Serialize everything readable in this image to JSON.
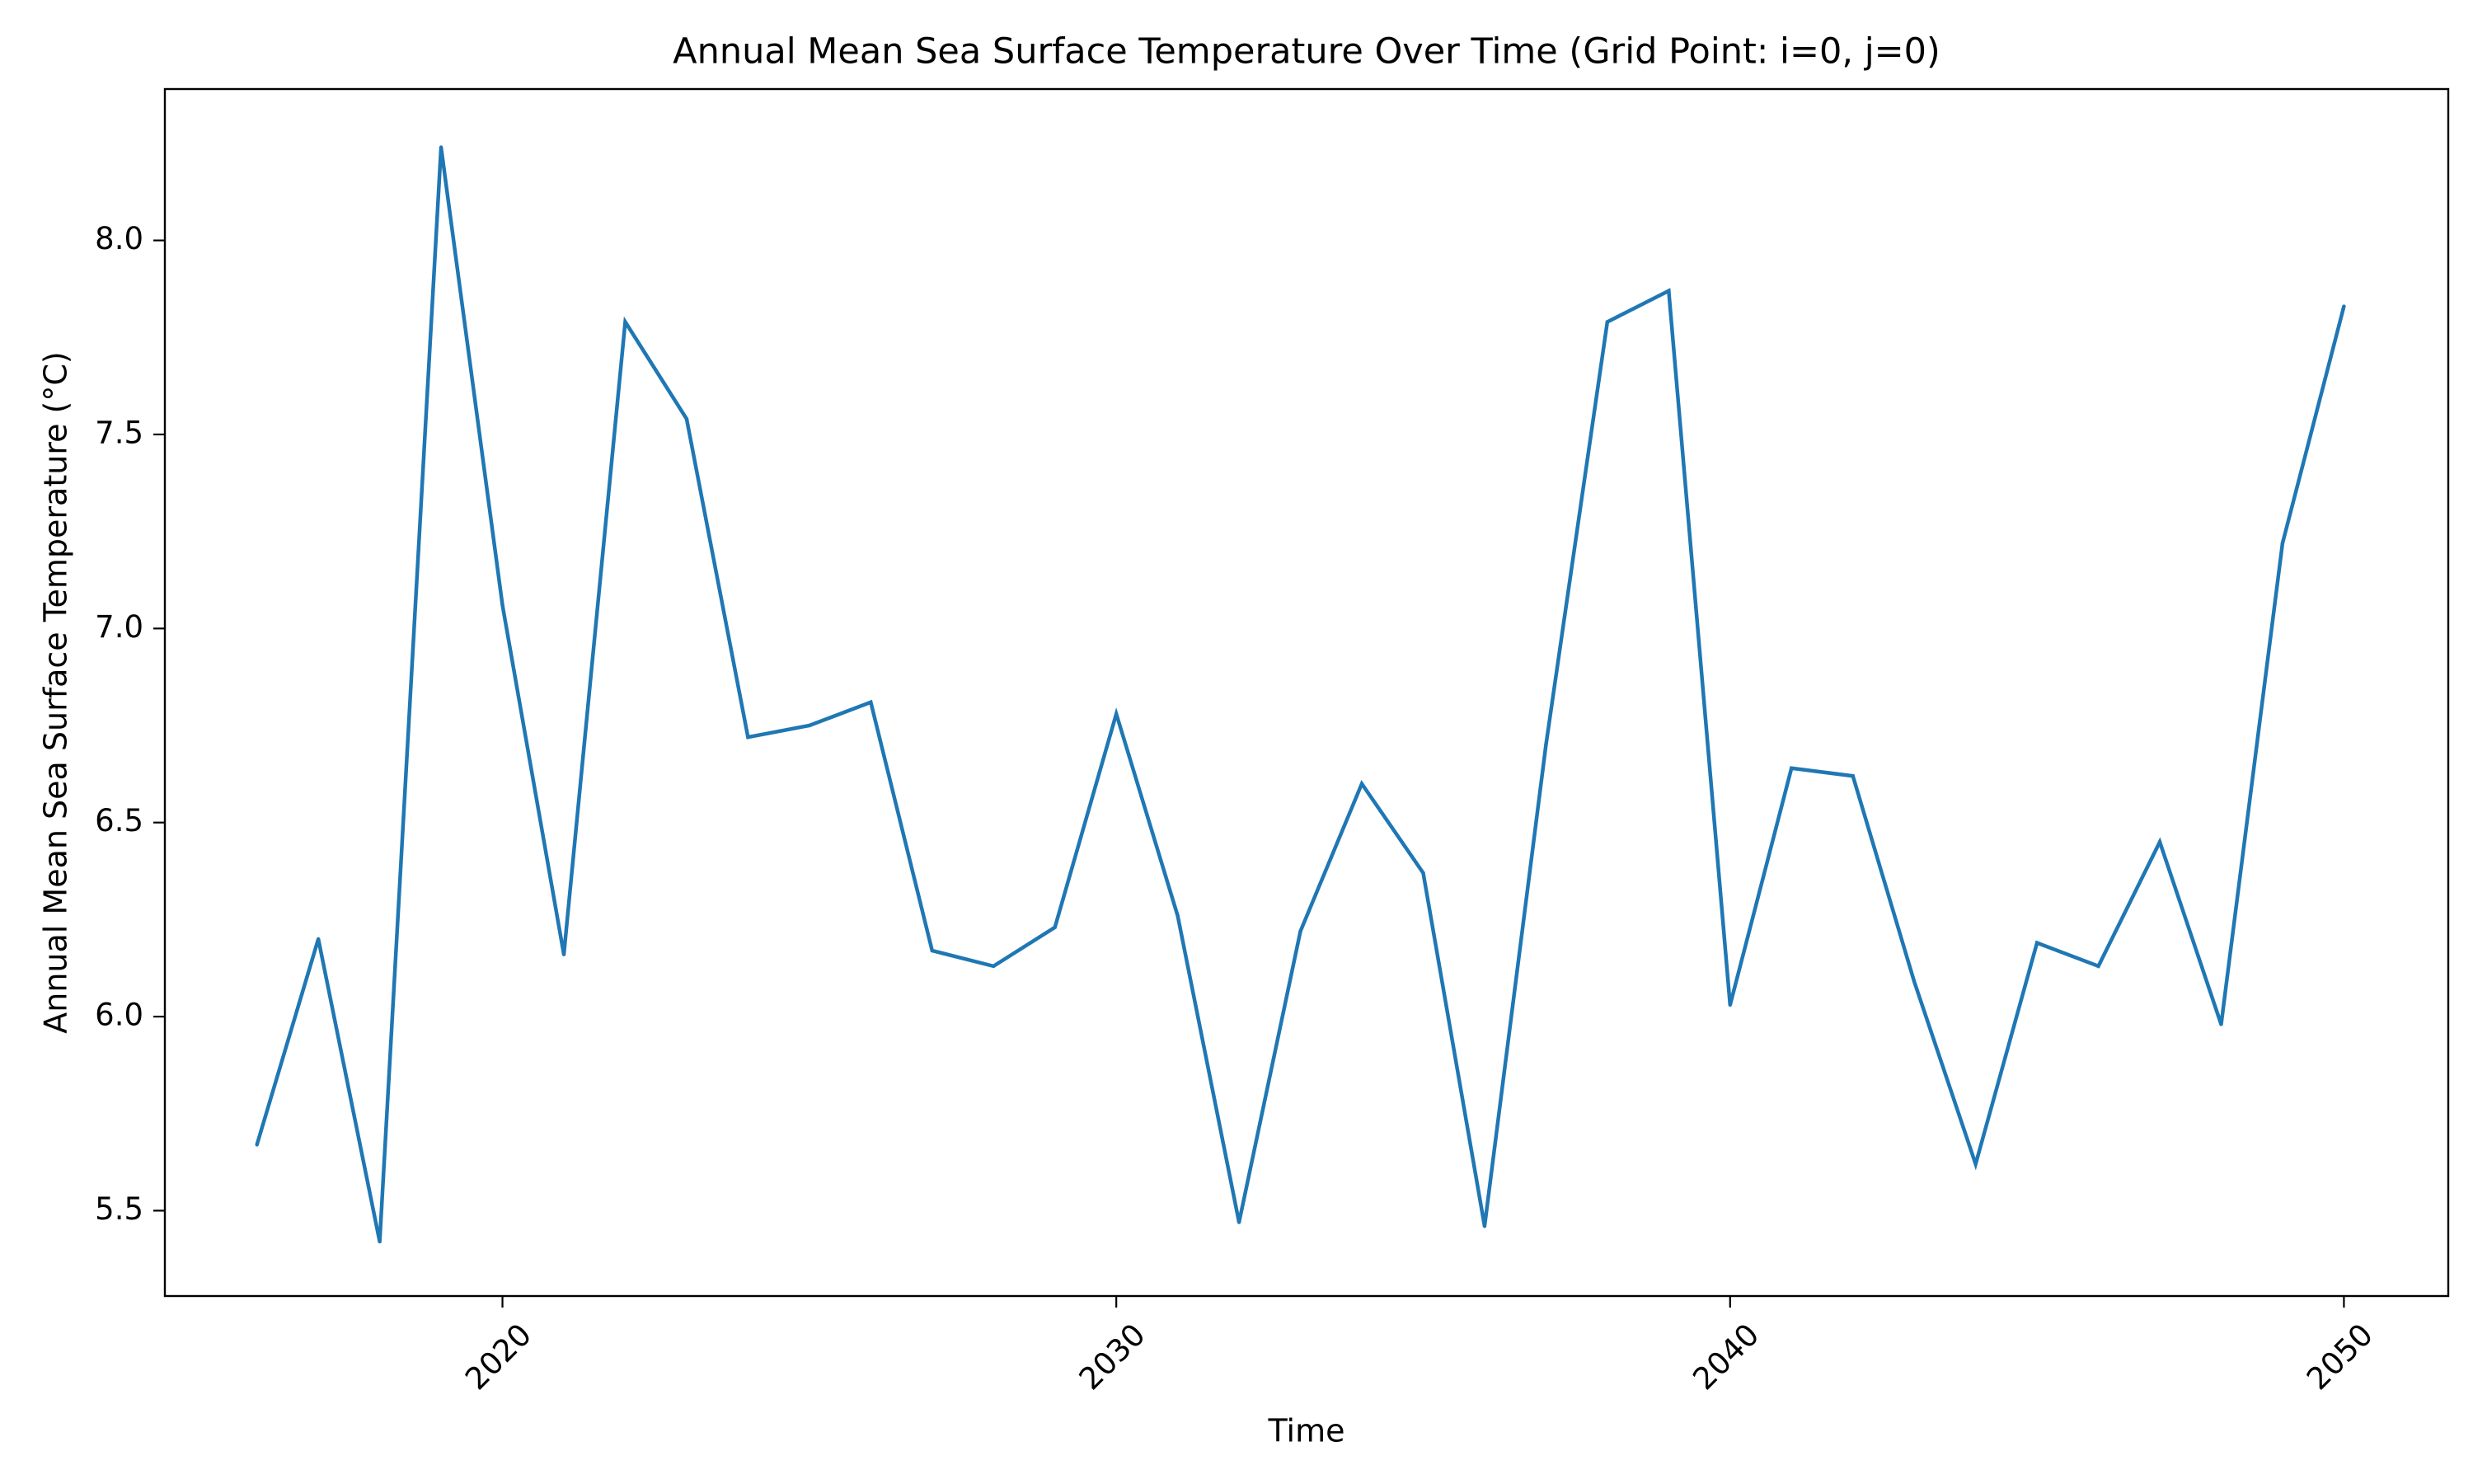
{
  "chart_data": {
    "type": "line",
    "title": "Annual Mean Sea Surface Temperature Over Time (Grid Point: i=0, j=0)",
    "xlabel": "Time",
    "ylabel": "Annual Mean Sea Surface Temperature (°C)",
    "xlim": [
      2014.5,
      2051.7
    ],
    "ylim": [
      5.28,
      8.39
    ],
    "x_ticks": [
      2020,
      2030,
      2040,
      2050
    ],
    "x_tick_labels": [
      "2020",
      "2030",
      "2040",
      "2050"
    ],
    "y_ticks": [
      5.5,
      6.0,
      6.5,
      7.0,
      7.5,
      8.0
    ],
    "y_tick_labels": [
      "5.5",
      "6.0",
      "6.5",
      "7.0",
      "7.5",
      "8.0"
    ],
    "grid": false,
    "legend": "none",
    "series": [
      {
        "color": "#1f77b4",
        "x": [
          2016,
          2017,
          2018,
          2019,
          2020,
          2021,
          2022,
          2023,
          2024,
          2025,
          2026,
          2027,
          2028,
          2029,
          2030,
          2031,
          2032,
          2033,
          2034,
          2035,
          2036,
          2037,
          2038,
          2039,
          2040,
          2041,
          2042,
          2043,
          2044,
          2045,
          2046,
          2047,
          2048,
          2049,
          2050
        ],
        "y": [
          5.67,
          6.2,
          5.42,
          8.24,
          7.06,
          6.16,
          7.79,
          7.54,
          6.72,
          6.75,
          6.81,
          6.17,
          6.13,
          6.23,
          6.78,
          6.26,
          5.47,
          6.22,
          6.6,
          6.37,
          5.46,
          6.7,
          7.79,
          7.87,
          6.03,
          6.64,
          6.62,
          6.09,
          5.62,
          6.19,
          6.13,
          6.45,
          5.98,
          7.22,
          7.83
        ]
      }
    ]
  }
}
